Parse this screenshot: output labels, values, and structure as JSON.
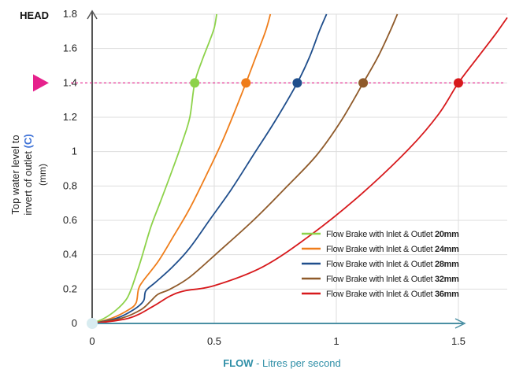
{
  "chart_data": {
    "type": "line",
    "ylabel_top": "HEAD",
    "ylabel_lines": [
      "Top water level to",
      "invert of outlet"
    ],
    "ylabel_highlight": "(C)",
    "ylabel_unit": "(mm)",
    "xlabel_bold": "FLOW",
    "xlabel_rest": " -  Litres per second",
    "xlim": [
      0,
      1.7
    ],
    "ylim": [
      0,
      1.8
    ],
    "x_ticks": [
      {
        "v": 0,
        "label": "0"
      },
      {
        "v": 0.5,
        "label": "0.5"
      },
      {
        "v": 1,
        "label": "1"
      },
      {
        "v": 1.5,
        "label": "1.5"
      }
    ],
    "y_ticks": [
      {
        "v": 0,
        "label": "0"
      },
      {
        "v": 0.2,
        "label": "0.2"
      },
      {
        "v": 0.4,
        "label": "0.4"
      },
      {
        "v": 0.6,
        "label": "0.6"
      },
      {
        "v": 0.8,
        "label": "0.8"
      },
      {
        "v": 1.0,
        "label": "1"
      },
      {
        "v": 1.2,
        "label": "1.2"
      },
      {
        "v": 1.4,
        "label": "1.4"
      },
      {
        "v": 1.6,
        "label": "1.6"
      },
      {
        "v": 1.8,
        "label": "1.8"
      }
    ],
    "design_head": 1.4,
    "marker_color": "#e6218c",
    "grid": true,
    "legend_position": "bottom-right",
    "legend_prefix": "Flow Brake with Inlet & Outlet ",
    "series": [
      {
        "name": "20mm",
        "color": "#8dd24a",
        "marker_x": 0.42,
        "points": [
          [
            0,
            0
          ],
          [
            0.05,
            0.03
          ],
          [
            0.1,
            0.08
          ],
          [
            0.14,
            0.14
          ],
          [
            0.16,
            0.2
          ],
          [
            0.17,
            0.24
          ],
          [
            0.2,
            0.37
          ],
          [
            0.24,
            0.56
          ],
          [
            0.28,
            0.71
          ],
          [
            0.33,
            0.9
          ],
          [
            0.37,
            1.06
          ],
          [
            0.4,
            1.2
          ],
          [
            0.42,
            1.4
          ],
          [
            0.45,
            1.53
          ],
          [
            0.48,
            1.64
          ],
          [
            0.5,
            1.72
          ],
          [
            0.51,
            1.8
          ]
        ]
      },
      {
        "name": "24mm",
        "color": "#ef7d1a",
        "marker_x": 0.63,
        "points": [
          [
            0,
            0
          ],
          [
            0.08,
            0.03
          ],
          [
            0.15,
            0.08
          ],
          [
            0.18,
            0.12
          ],
          [
            0.19,
            0.2
          ],
          [
            0.21,
            0.25
          ],
          [
            0.27,
            0.36
          ],
          [
            0.33,
            0.5
          ],
          [
            0.4,
            0.67
          ],
          [
            0.47,
            0.87
          ],
          [
            0.53,
            1.05
          ],
          [
            0.58,
            1.22
          ],
          [
            0.63,
            1.4
          ],
          [
            0.67,
            1.55
          ],
          [
            0.71,
            1.7
          ],
          [
            0.73,
            1.8
          ]
        ]
      },
      {
        "name": "28mm",
        "color": "#1f4e8c",
        "marker_x": 0.84,
        "points": [
          [
            0,
            0
          ],
          [
            0.1,
            0.03
          ],
          [
            0.17,
            0.08
          ],
          [
            0.21,
            0.13
          ],
          [
            0.22,
            0.19
          ],
          [
            0.26,
            0.24
          ],
          [
            0.33,
            0.33
          ],
          [
            0.4,
            0.44
          ],
          [
            0.48,
            0.6
          ],
          [
            0.57,
            0.78
          ],
          [
            0.66,
            0.98
          ],
          [
            0.75,
            1.18
          ],
          [
            0.84,
            1.4
          ],
          [
            0.89,
            1.55
          ],
          [
            0.93,
            1.7
          ],
          [
            0.96,
            1.8
          ]
        ]
      },
      {
        "name": "32mm",
        "color": "#8f5a2a",
        "marker_x": 1.11,
        "points": [
          [
            0,
            0
          ],
          [
            0.12,
            0.03
          ],
          [
            0.2,
            0.08
          ],
          [
            0.24,
            0.13
          ],
          [
            0.27,
            0.17
          ],
          [
            0.32,
            0.2
          ],
          [
            0.4,
            0.27
          ],
          [
            0.52,
            0.42
          ],
          [
            0.66,
            0.6
          ],
          [
            0.8,
            0.8
          ],
          [
            0.92,
            0.98
          ],
          [
            1.02,
            1.18
          ],
          [
            1.11,
            1.4
          ],
          [
            1.17,
            1.55
          ],
          [
            1.22,
            1.7
          ],
          [
            1.25,
            1.8
          ]
        ]
      },
      {
        "name": "36mm",
        "color": "#d7191c",
        "marker_x": 1.5,
        "points": [
          [
            0,
            0
          ],
          [
            0.15,
            0.03
          ],
          [
            0.25,
            0.1
          ],
          [
            0.32,
            0.16
          ],
          [
            0.38,
            0.19
          ],
          [
            0.5,
            0.22
          ],
          [
            0.7,
            0.33
          ],
          [
            0.9,
            0.52
          ],
          [
            1.1,
            0.75
          ],
          [
            1.3,
            1.02
          ],
          [
            1.42,
            1.22
          ],
          [
            1.5,
            1.4
          ],
          [
            1.58,
            1.55
          ],
          [
            1.65,
            1.68
          ],
          [
            1.7,
            1.78
          ]
        ]
      }
    ]
  },
  "colors": {
    "axis": "#555555",
    "x_axis": "#4a8fa3",
    "grid": "#dddddd",
    "origin": "#d8ecf0",
    "ylabel_highlight": "#3a6fd6",
    "xlabel_bold": "#2f8fa7",
    "xlabel_rest": "#2f8fa7"
  }
}
